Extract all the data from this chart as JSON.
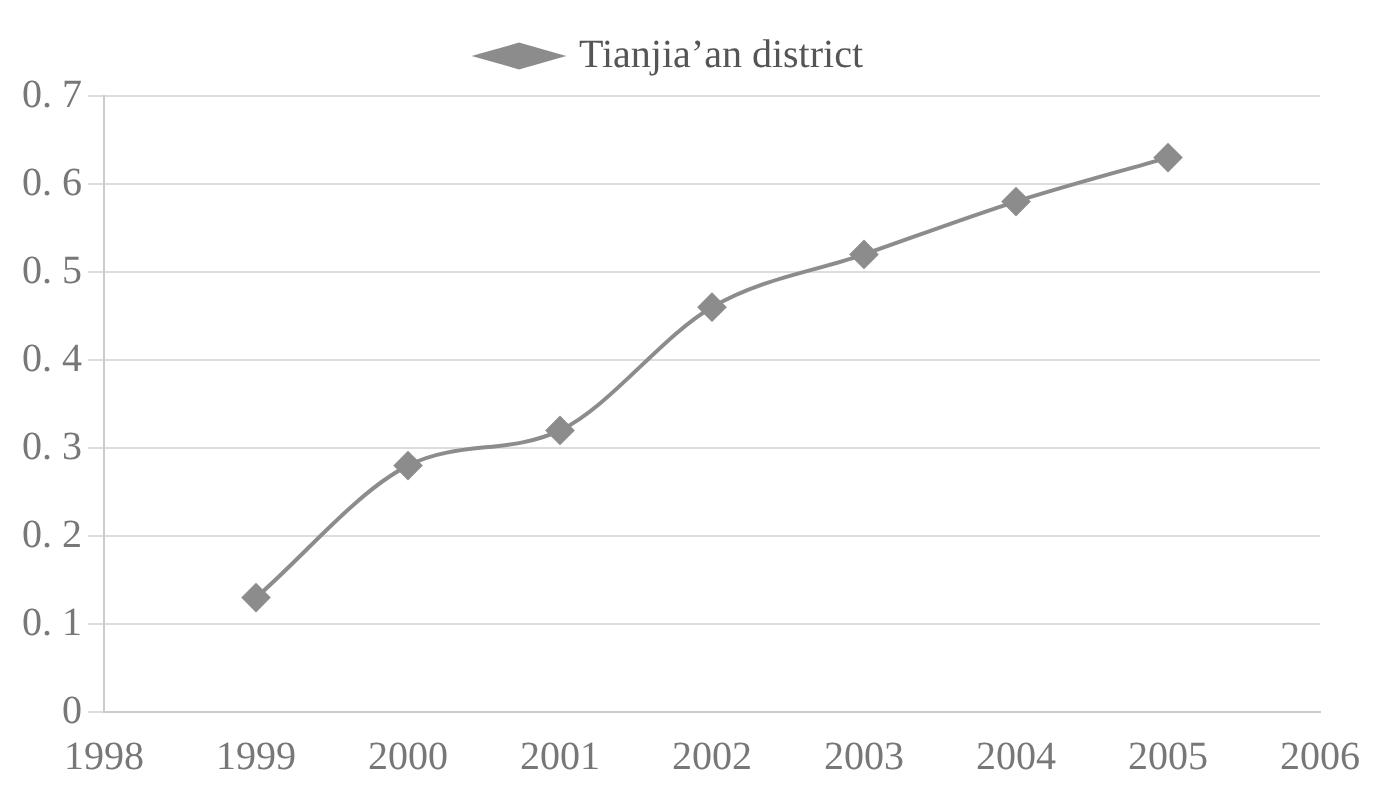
{
  "chart_data": {
    "type": "line",
    "x": [
      1999,
      2000,
      2001,
      2002,
      2003,
      2004,
      2005
    ],
    "series": [
      {
        "name": "Tianjia’an district",
        "color": "#8c8c8c",
        "values": [
          0.13,
          0.28,
          0.32,
          0.46,
          0.52,
          0.58,
          0.63
        ]
      }
    ],
    "xlim": [
      1998,
      2006
    ],
    "xticks": [
      1998,
      1999,
      2000,
      2001,
      2002,
      2003,
      2004,
      2005,
      2006
    ],
    "ylim": [
      0,
      0.7
    ],
    "yticks": [
      0,
      0.1,
      0.2,
      0.3,
      0.4,
      0.5,
      0.6,
      0.7
    ],
    "grid": "y",
    "legend": "top",
    "marker": "diamond",
    "line_style": "solid"
  }
}
